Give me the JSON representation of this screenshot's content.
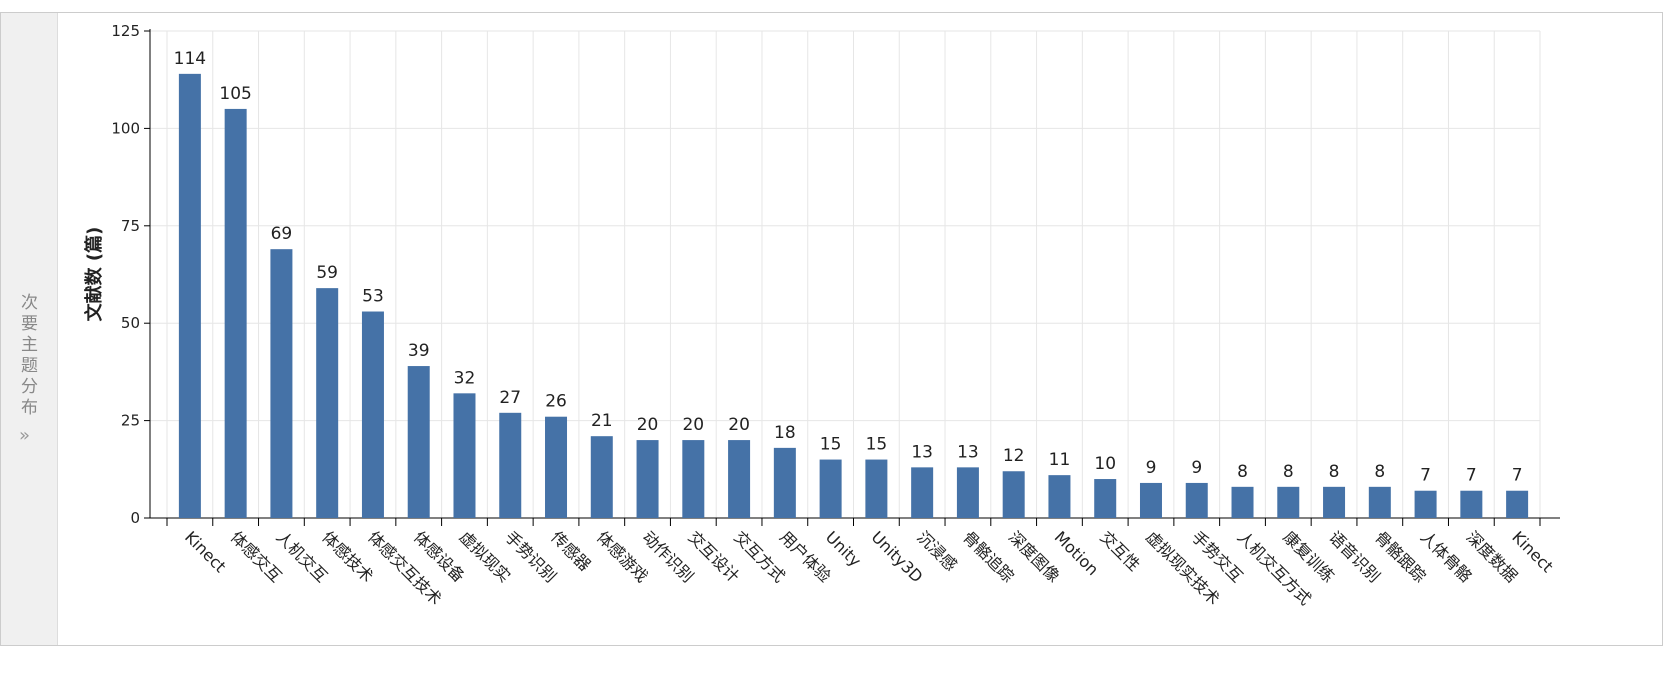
{
  "sidebar": {
    "title": "次要主题分布"
  },
  "chart_data": {
    "type": "bar",
    "y_label": "文献数 (篇)",
    "categories": [
      "Kinect",
      "体感交互",
      "人机交互",
      "体感技术",
      "体感交互技术",
      "体感设备",
      "虚拟现实",
      "手势识别",
      "传感器",
      "体感游戏",
      "动作识别",
      "交互设计",
      "交互方式",
      "用户体验",
      "Unity",
      "Unity3D",
      "沉浸感",
      "骨骼追踪",
      "深度图像",
      "Motion",
      "交互性",
      "虚拟现实技术",
      "手势交互",
      "人机交互方式",
      "康复训练",
      "语音识别",
      "骨骼跟踪",
      "人体骨骼",
      "深度数据",
      "Kinect"
    ],
    "values": [
      114,
      105,
      69,
      59,
      53,
      39,
      32,
      27,
      26,
      21,
      20,
      20,
      20,
      18,
      15,
      15,
      13,
      13,
      12,
      11,
      10,
      9,
      9,
      8,
      8,
      8,
      8,
      7,
      7,
      7
    ],
    "color": "#4572a7",
    "ylim": [
      0,
      125
    ],
    "yticks": [
      0,
      25,
      50,
      75,
      100,
      125
    ],
    "grid": true
  }
}
